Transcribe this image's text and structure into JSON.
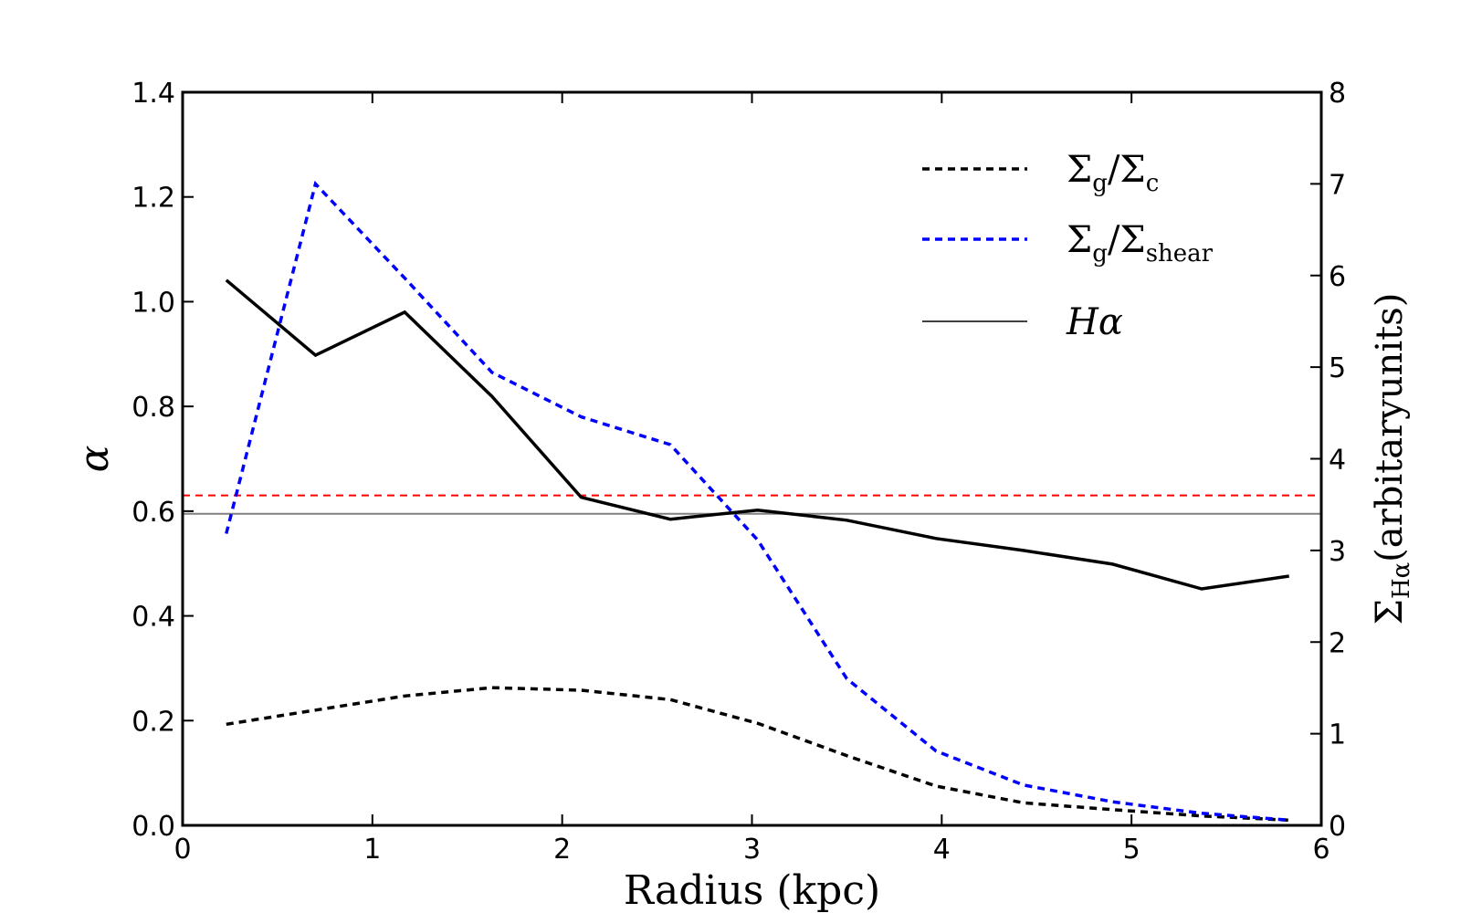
{
  "chart_data": {
    "type": "line",
    "title": "",
    "xlabel": "Radius (kpc)",
    "ylabel": "α",
    "y2label_base": "Σ",
    "y2label_sub": "Hα",
    "y2label_rest": "(arbitaryunits)",
    "xlim": [
      0,
      6
    ],
    "ylim": [
      0,
      1.4
    ],
    "y2lim": [
      0,
      8
    ],
    "x_ticks": [
      "0",
      "1",
      "2",
      "3",
      "4",
      "5",
      "6"
    ],
    "y_ticks": [
      "0.0",
      "0.2",
      "0.4",
      "0.6",
      "0.8",
      "1.0",
      "1.2",
      "1.4"
    ],
    "y2_ticks": [
      "0",
      "1",
      "2",
      "3",
      "4",
      "5",
      "6",
      "7",
      "8"
    ],
    "x_tick_values": [
      0,
      1,
      2,
      3,
      4,
      5,
      6
    ],
    "y_tick_values": [
      0,
      0.2,
      0.4,
      0.6,
      0.8,
      1.0,
      1.2,
      1.4
    ],
    "y2_tick_values": [
      0,
      1,
      2,
      3,
      4,
      5,
      6,
      7,
      8
    ],
    "reference_lines": [
      {
        "name": "red-dashed-reference",
        "y": 0.63,
        "color": "#ff0000",
        "style": "dashed"
      },
      {
        "name": "gray-reference",
        "y": 0.595,
        "color": "#808080",
        "style": "solid"
      }
    ],
    "series": [
      {
        "name": "Σg/Σc",
        "legend_base": "Σ",
        "legend_sub1": "g",
        "legend_mid": "/Σ",
        "legend_sub2": "c",
        "axis": "left",
        "color": "#000000",
        "style": "dashed",
        "x": [
          0.23,
          0.7,
          1.17,
          1.63,
          2.1,
          2.57,
          3.03,
          3.5,
          3.97,
          4.43,
          4.9,
          5.37,
          5.83
        ],
        "y": [
          0.193,
          0.22,
          0.247,
          0.263,
          0.258,
          0.24,
          0.195,
          0.133,
          0.075,
          0.043,
          0.03,
          0.018,
          0.01
        ]
      },
      {
        "name": "Σg/Σshear",
        "legend_base": "Σ",
        "legend_sub1": "g",
        "legend_mid": "/Σ",
        "legend_sub2": "shear",
        "axis": "left",
        "color": "#0000ff",
        "style": "dashed",
        "x": [
          0.23,
          0.7,
          1.17,
          1.63,
          2.1,
          2.57,
          3.03,
          3.5,
          3.97,
          4.43,
          4.9,
          5.37,
          5.83
        ],
        "y": [
          0.557,
          1.225,
          1.045,
          0.865,
          0.78,
          0.727,
          0.545,
          0.28,
          0.142,
          0.077,
          0.045,
          0.023,
          0.01
        ]
      },
      {
        "name": "Hα",
        "legend_label": "Hα",
        "axis": "right",
        "color": "#000000",
        "style": "solid",
        "x": [
          0.23,
          0.7,
          1.17,
          1.63,
          2.1,
          2.57,
          3.03,
          3.5,
          3.97,
          4.43,
          4.9,
          5.37,
          5.83
        ],
        "y": [
          5.95,
          5.13,
          5.6,
          4.68,
          3.58,
          3.34,
          3.44,
          3.33,
          3.13,
          3.0,
          2.85,
          2.58,
          2.72
        ]
      }
    ],
    "legend_position": "top-right"
  }
}
